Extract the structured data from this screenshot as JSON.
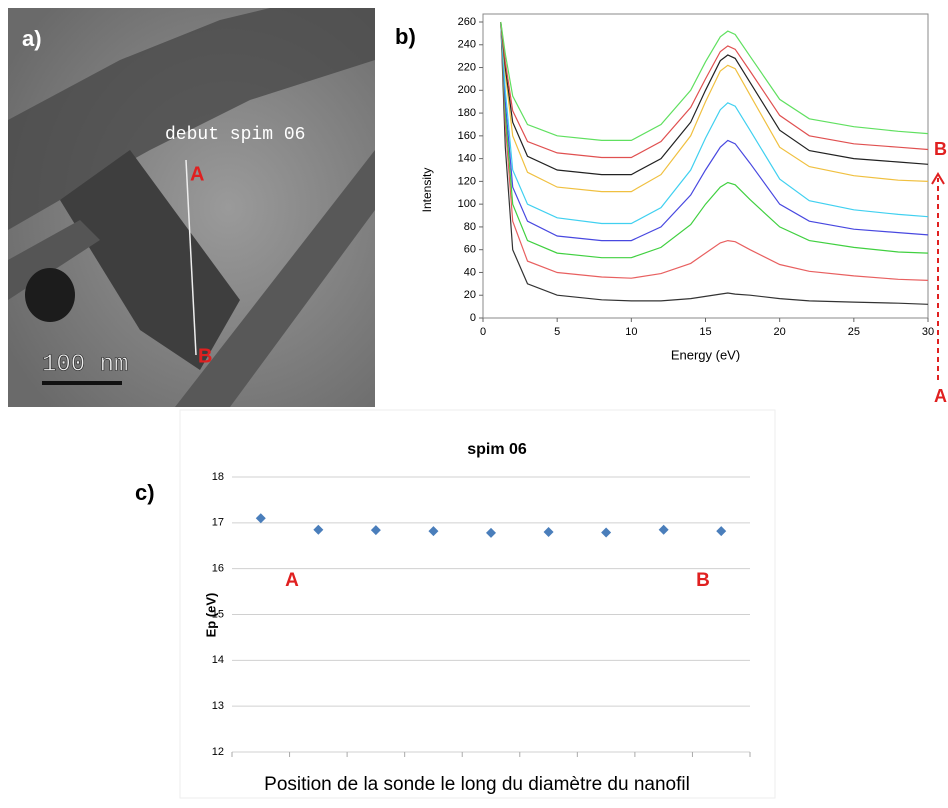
{
  "image": {
    "panel_label": "a)",
    "caption": "debut spim 06",
    "start_label": "A",
    "end_label": "B",
    "scale_bar": "100 nm"
  },
  "chart_data": [
    {
      "type": "line",
      "panel_label": "b)",
      "xlabel": "Energy (eV)",
      "ylabel": "Intensity",
      "x": [
        1.2,
        1.5,
        2,
        3,
        5,
        8,
        10,
        12,
        14,
        15,
        16,
        16.5,
        17,
        18,
        20,
        22,
        25,
        28,
        30
      ],
      "xlim": [
        0,
        30
      ],
      "xticks": [
        0,
        5,
        10,
        15,
        20,
        25,
        30
      ],
      "ylim": [
        0,
        260
      ],
      "yticks": [
        0,
        20,
        40,
        60,
        80,
        100,
        120,
        140,
        160,
        180,
        200,
        220,
        240,
        260
      ],
      "start_label": "A",
      "end_label": "B",
      "arrow_color": "#e02020",
      "series": [
        {
          "color": "#333333",
          "values": [
            260,
            150,
            60,
            30,
            20,
            16,
            15,
            15,
            17,
            19,
            21,
            22,
            21,
            20,
            17,
            15,
            14,
            13,
            12
          ]
        },
        {
          "color": "#e86060",
          "values": [
            260,
            170,
            85,
            50,
            40,
            36,
            35,
            39,
            48,
            57,
            66,
            68,
            67,
            60,
            47,
            41,
            37,
            34,
            33
          ]
        },
        {
          "color": "#40d040",
          "values": [
            260,
            180,
            100,
            68,
            57,
            53,
            53,
            62,
            82,
            100,
            115,
            119,
            117,
            104,
            80,
            68,
            62,
            58,
            57
          ]
        },
        {
          "color": "#4848e0",
          "values": [
            260,
            190,
            115,
            85,
            72,
            68,
            68,
            80,
            108,
            130,
            150,
            156,
            153,
            136,
            100,
            85,
            78,
            75,
            73
          ]
        },
        {
          "color": "#40d0f0",
          "values": [
            260,
            200,
            130,
            100,
            88,
            83,
            83,
            97,
            130,
            158,
            183,
            189,
            186,
            165,
            122,
            103,
            95,
            91,
            89
          ]
        },
        {
          "color": "#f0c040",
          "values": [
            260,
            215,
            160,
            128,
            115,
            111,
            111,
            126,
            160,
            190,
            217,
            222,
            219,
            196,
            150,
            133,
            125,
            121,
            120
          ]
        },
        {
          "color": "#222222",
          "values": [
            260,
            220,
            172,
            142,
            130,
            126,
            126,
            140,
            172,
            200,
            226,
            231,
            228,
            207,
            165,
            147,
            140,
            137,
            135
          ]
        },
        {
          "color": "#e05050",
          "values": [
            260,
            225,
            182,
            155,
            145,
            141,
            141,
            155,
            185,
            210,
            234,
            239,
            236,
            217,
            178,
            160,
            153,
            150,
            148
          ]
        },
        {
          "color": "#60e060",
          "values": [
            260,
            232,
            195,
            170,
            160,
            156,
            156,
            170,
            200,
            225,
            247,
            252,
            249,
            230,
            192,
            175,
            168,
            164,
            162
          ]
        }
      ]
    },
    {
      "type": "scatter",
      "panel_label": "c)",
      "title": "spim 06",
      "ylabel": "Ep (eV)",
      "xlabel": "Position de la sonde le long du diamètre du nanofil",
      "categories": [
        null,
        null,
        null,
        null,
        null,
        null,
        null,
        null,
        null
      ],
      "values": [
        17.1,
        16.85,
        16.84,
        16.82,
        16.78,
        16.8,
        16.79,
        16.85,
        16.82
      ],
      "color": "#4a7ebb",
      "ylim": [
        12,
        18
      ],
      "yticks": [
        12,
        13,
        14,
        15,
        16,
        17,
        18
      ],
      "grid": true,
      "start_label": "A",
      "end_label": "B",
      "label_color": "#e02020"
    }
  ]
}
